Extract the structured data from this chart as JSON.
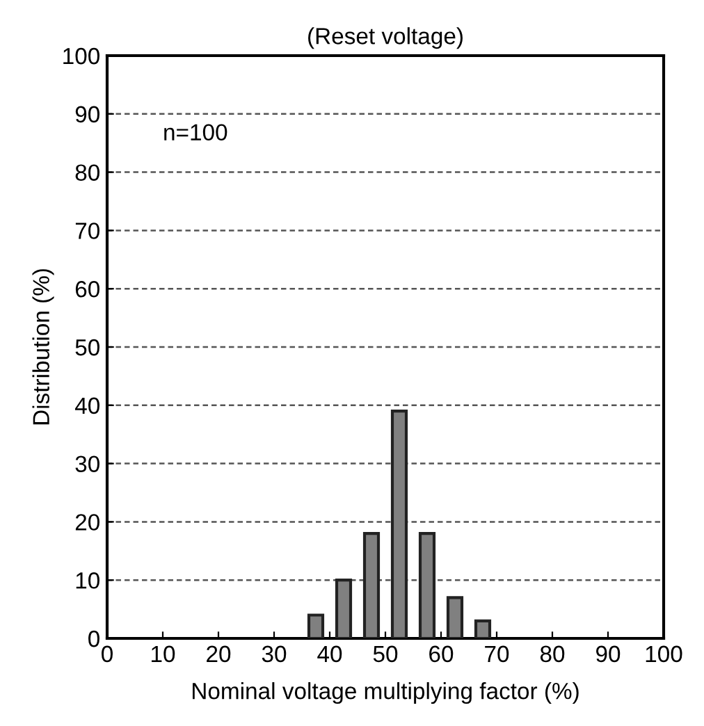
{
  "chart_data": {
    "type": "bar",
    "title": "(Reset voltage)",
    "xlabel": "Nominal voltage multiplying factor (%)",
    "ylabel": "Distribution (%)",
    "x": [
      37.5,
      42.5,
      47.5,
      52.5,
      57.5,
      62.5,
      67.5
    ],
    "values": [
      4,
      10,
      18,
      39,
      18,
      7,
      3
    ],
    "color": "#808080",
    "xlim": [
      0,
      100
    ],
    "xticks": [
      0,
      10,
      20,
      30,
      40,
      50,
      60,
      70,
      80,
      90,
      100
    ],
    "ylim": [
      0,
      100
    ],
    "yticks": [
      0,
      10,
      20,
      30,
      40,
      50,
      60,
      70,
      80,
      90,
      100
    ],
    "grid": "y",
    "annotations": [
      "n=100"
    ]
  }
}
